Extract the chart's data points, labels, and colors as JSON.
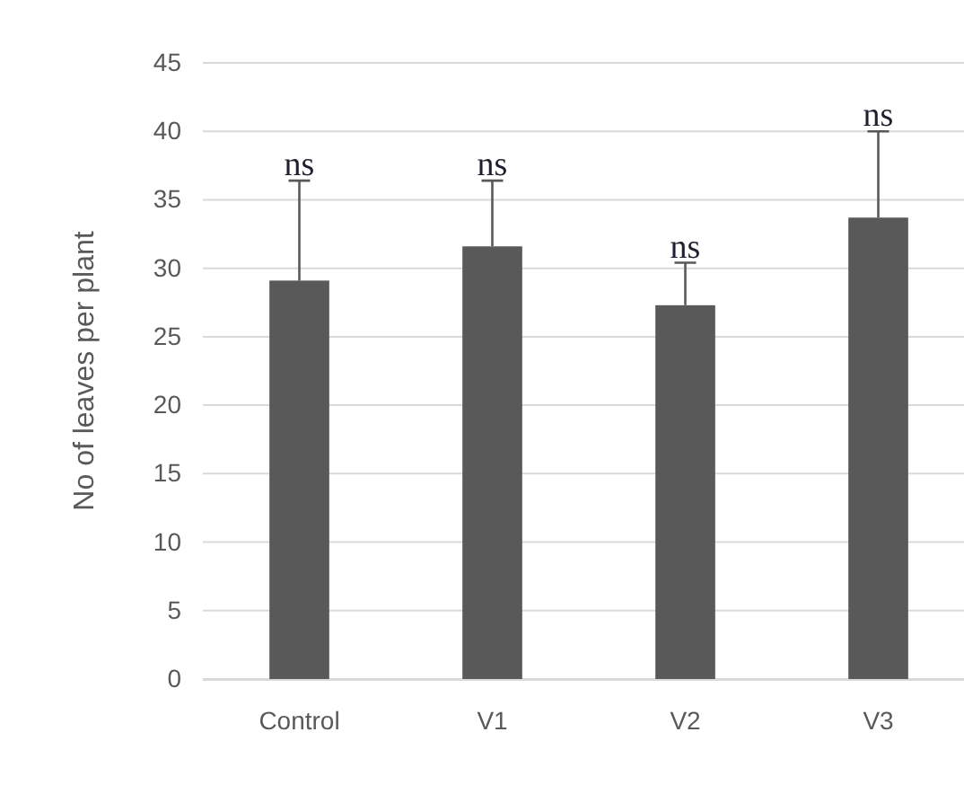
{
  "chart_data": {
    "type": "bar",
    "ylabel": "No of leaves per plant",
    "categories": [
      "Control",
      "V1",
      "V2",
      "V3"
    ],
    "values": [
      29.1,
      31.6,
      27.3,
      33.7
    ],
    "errors": [
      [
        29.1,
        36.4
      ],
      [
        31.6,
        36.4
      ],
      [
        27.3,
        30.4
      ],
      [
        33.7,
        40.0
      ]
    ],
    "color": "#595959",
    "ylim": [
      0,
      45
    ],
    "yticks": [
      0,
      5,
      10,
      15,
      20,
      25,
      30,
      35,
      40,
      45
    ],
    "grid": "y",
    "annotations": [
      {
        "text": "ns",
        "x": "Control",
        "y": 36.4
      },
      {
        "text": "ns",
        "x": "V1",
        "y": 36.4
      },
      {
        "text": "ns",
        "x": "V2",
        "y": 30.4
      },
      {
        "text": "ns",
        "x": "V3",
        "y": 40.0
      }
    ]
  }
}
